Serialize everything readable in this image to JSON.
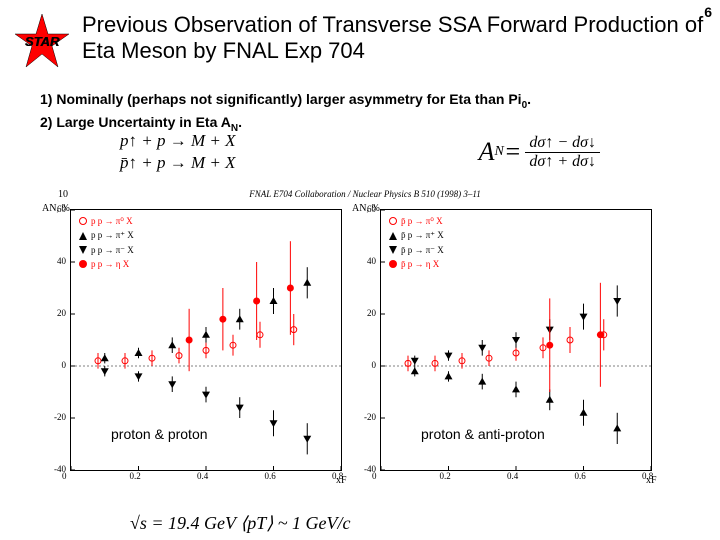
{
  "page_number": "6",
  "logo_text": "STAR",
  "logo_star_fill": "#ff0000",
  "title": "Previous Observation of Transverse SSA Forward Production of Eta Meson by FNAL Exp 704",
  "bullets": {
    "b1_prefix": "1) Nominally (perhaps not significantly) larger asymmetry for Eta than Pi",
    "b1_sub": "0",
    "b1_suffix": ".",
    "b2_prefix": "2) Large Uncertainty in Eta A",
    "b2_sub": "N",
    "b2_suffix": "."
  },
  "reactions": {
    "r1": "p↑ + p → M + X",
    "r2": "p̄↑ + p → M + X"
  },
  "an_formula": {
    "lhs": "A",
    "lhs_sub": "N",
    "eq": " = ",
    "num": "dσ↑ − dσ↓",
    "den": "dσ↑ + dσ↓"
  },
  "figure": {
    "ref_num": "10",
    "ref_text": "FNAL E704 Collaboration / Nuclear Physics B 510 (1998) 3–11",
    "ylabel_left": "AN, %",
    "ylabel_right": "AN, %",
    "xlabel": "xF",
    "left": {
      "caption": "proton & proton",
      "ylim": [
        -40,
        60
      ],
      "xlim": [
        0,
        0.8
      ],
      "yticks": [
        60,
        40,
        20,
        0,
        -20,
        -40
      ],
      "xticks": [
        0,
        0.2,
        0.4,
        0.6,
        0.8
      ],
      "legend": [
        {
          "marker": "circle-open",
          "color": "#ff0000",
          "text": "p p → π⁰ X"
        },
        {
          "marker": "tri-up",
          "color": "#000000",
          "text": "p p → π⁺ X"
        },
        {
          "marker": "tri-down",
          "color": "#000000",
          "text": "p p → π⁻ X"
        },
        {
          "marker": "circle-fill",
          "color": "#ff0000",
          "text": "p p → η X"
        }
      ],
      "series": {
        "pi0": {
          "marker": "circle-open",
          "color": "#ff0000",
          "points": [
            [
              0.08,
              2,
              3
            ],
            [
              0.16,
              2,
              3
            ],
            [
              0.24,
              3,
              3
            ],
            [
              0.32,
              4,
              3
            ],
            [
              0.4,
              6,
              3
            ],
            [
              0.48,
              8,
              4
            ],
            [
              0.56,
              12,
              5
            ],
            [
              0.66,
              14,
              6
            ]
          ]
        },
        "piplus": {
          "marker": "tri-up",
          "color": "#000000",
          "points": [
            [
              0.1,
              3,
              2
            ],
            [
              0.2,
              5,
              2
            ],
            [
              0.3,
              8,
              3
            ],
            [
              0.4,
              12,
              3
            ],
            [
              0.5,
              18,
              4
            ],
            [
              0.6,
              25,
              5
            ],
            [
              0.7,
              32,
              6
            ]
          ]
        },
        "piminus": {
          "marker": "tri-down",
          "color": "#000000",
          "points": [
            [
              0.1,
              -2,
              2
            ],
            [
              0.2,
              -4,
              2
            ],
            [
              0.3,
              -7,
              3
            ],
            [
              0.4,
              -11,
              3
            ],
            [
              0.5,
              -16,
              4
            ],
            [
              0.6,
              -22,
              5
            ],
            [
              0.7,
              -28,
              6
            ]
          ]
        },
        "eta": {
          "marker": "circle-fill",
          "color": "#ff0000",
          "points": [
            [
              0.35,
              10,
              12
            ],
            [
              0.45,
              18,
              12
            ],
            [
              0.55,
              25,
              15
            ],
            [
              0.65,
              30,
              18
            ]
          ]
        }
      }
    },
    "right": {
      "caption": "proton & anti-proton",
      "ylim": [
        -40,
        60
      ],
      "xlim": [
        0,
        0.8
      ],
      "yticks": [
        60,
        40,
        20,
        0,
        -20,
        -40
      ],
      "xticks": [
        0,
        0.2,
        0.4,
        0.6,
        0.8
      ],
      "legend": [
        {
          "marker": "circle-open",
          "color": "#ff0000",
          "text": "p̄ p → π⁰ X"
        },
        {
          "marker": "tri-up",
          "color": "#000000",
          "text": "p̄ p → π⁺ X"
        },
        {
          "marker": "tri-down",
          "color": "#000000",
          "text": "p̄ p → π⁻ X"
        },
        {
          "marker": "circle-fill",
          "color": "#ff0000",
          "text": "p̄ p → η X"
        }
      ],
      "series": {
        "pi0": {
          "marker": "circle-open",
          "color": "#ff0000",
          "points": [
            [
              0.08,
              1,
              3
            ],
            [
              0.16,
              1,
              3
            ],
            [
              0.24,
              2,
              3
            ],
            [
              0.32,
              3,
              3
            ],
            [
              0.4,
              5,
              3
            ],
            [
              0.48,
              7,
              4
            ],
            [
              0.56,
              10,
              5
            ],
            [
              0.66,
              12,
              6
            ]
          ]
        },
        "piplus": {
          "marker": "tri-up",
          "color": "#000000",
          "points": [
            [
              0.1,
              -2,
              2
            ],
            [
              0.2,
              -4,
              2
            ],
            [
              0.3,
              -6,
              3
            ],
            [
              0.4,
              -9,
              3
            ],
            [
              0.5,
              -13,
              4
            ],
            [
              0.6,
              -18,
              5
            ],
            [
              0.7,
              -24,
              6
            ]
          ]
        },
        "piminus": {
          "marker": "tri-down",
          "color": "#000000",
          "points": [
            [
              0.1,
              2,
              2
            ],
            [
              0.2,
              4,
              2
            ],
            [
              0.3,
              7,
              3
            ],
            [
              0.4,
              10,
              3
            ],
            [
              0.5,
              14,
              4
            ],
            [
              0.6,
              19,
              5
            ],
            [
              0.7,
              25,
              6
            ]
          ]
        },
        "eta": {
          "marker": "circle-fill",
          "color": "#ff0000",
          "points": [
            [
              0.5,
              8,
              18
            ],
            [
              0.65,
              12,
              20
            ]
          ]
        }
      }
    }
  },
  "bottom_formula": "√s = 19.4 GeV    ⟨pT⟩ ~ 1 GeV/c"
}
